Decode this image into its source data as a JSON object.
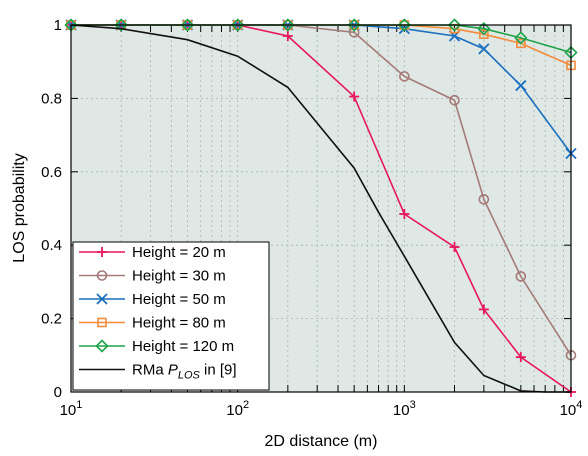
{
  "chart_data": {
    "type": "line",
    "title": "",
    "xlabel": "2D distance (m)",
    "ylabel": "LOS probability",
    "xscale": "log",
    "xlim": [
      10,
      10000
    ],
    "ylim": [
      0,
      1
    ],
    "grid": true,
    "legend_position": "bottom-left",
    "background_color": "#dfe8e4",
    "x_ticks": [
      {
        "value": 10,
        "base": "10",
        "exp": "1"
      },
      {
        "value": 100,
        "base": "10",
        "exp": "2"
      },
      {
        "value": 1000,
        "base": "10",
        "exp": "3"
      },
      {
        "value": 10000,
        "base": "10",
        "exp": "4"
      }
    ],
    "y_ticks": [
      {
        "value": 0,
        "label": "0"
      },
      {
        "value": 0.2,
        "label": "0.2"
      },
      {
        "value": 0.4,
        "label": "0.4"
      },
      {
        "value": 0.6,
        "label": "0.6"
      },
      {
        "value": 0.8,
        "label": "0.8"
      },
      {
        "value": 1,
        "label": "1"
      }
    ],
    "series": [
      {
        "name": "Height = 20 m",
        "color": "#e8175d",
        "marker": "plus",
        "x": [
          10,
          20,
          50,
          100,
          200,
          500,
          1000,
          2000,
          3000,
          5000,
          10000
        ],
        "y": [
          1.0,
          1.0,
          1.0,
          1.0,
          0.97,
          0.805,
          0.485,
          0.395,
          0.225,
          0.095,
          0.0
        ]
      },
      {
        "name": "Height = 30 m",
        "color": "#a57a78",
        "marker": "circle",
        "x": [
          10,
          20,
          50,
          100,
          200,
          500,
          1000,
          2000,
          3000,
          5000,
          10000
        ],
        "y": [
          1.0,
          1.0,
          1.0,
          1.0,
          1.0,
          0.98,
          0.86,
          0.795,
          0.525,
          0.315,
          0.1
        ]
      },
      {
        "name": "Height = 50 m",
        "color": "#1a6fbf",
        "marker": "cross",
        "x": [
          10,
          20,
          50,
          100,
          200,
          500,
          1000,
          2000,
          3000,
          5000,
          10000
        ],
        "y": [
          1.0,
          1.0,
          1.0,
          1.0,
          1.0,
          1.0,
          0.99,
          0.97,
          0.935,
          0.835,
          0.65
        ]
      },
      {
        "name": "Height = 80 m",
        "color": "#f28c3b",
        "marker": "square",
        "x": [
          10,
          20,
          50,
          100,
          200,
          500,
          1000,
          2000,
          3000,
          5000,
          10000
        ],
        "y": [
          1.0,
          1.0,
          1.0,
          1.0,
          1.0,
          1.0,
          1.0,
          0.99,
          0.975,
          0.95,
          0.89
        ]
      },
      {
        "name": "Height = 120 m",
        "color": "#1ea34a",
        "marker": "diamond",
        "x": [
          10,
          20,
          50,
          100,
          200,
          500,
          1000,
          2000,
          3000,
          5000,
          10000
        ],
        "y": [
          1.0,
          1.0,
          1.0,
          1.0,
          1.0,
          1.0,
          1.0,
          1.0,
          0.99,
          0.965,
          0.925
        ]
      },
      {
        "name": "RMa P_LOS in [9]",
        "legend_label": {
          "prefix": "RMa ",
          "symbol": "P",
          "subscript": "LOS",
          "suffix": " in [9]"
        },
        "color": "#111111",
        "marker": "none",
        "x": [
          10,
          20,
          50,
          100,
          200,
          500,
          700,
          1000,
          2000,
          3000,
          5000,
          7000,
          10000
        ],
        "y": [
          1.0,
          0.99,
          0.96,
          0.915,
          0.83,
          0.61,
          0.49,
          0.37,
          0.135,
          0.045,
          0.003,
          0.0,
          0.0
        ]
      }
    ]
  }
}
